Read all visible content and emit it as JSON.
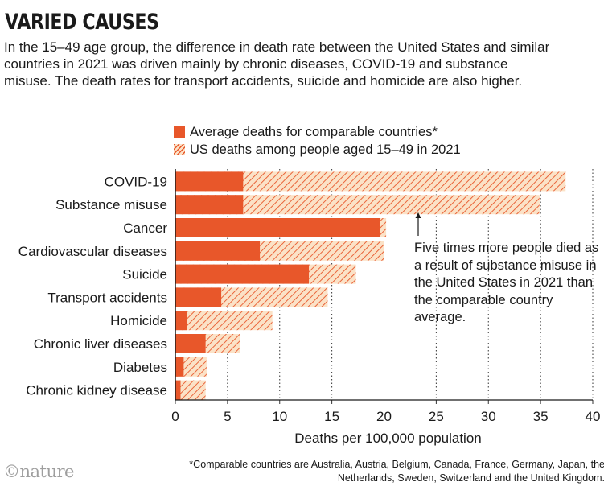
{
  "title": "VARIED CAUSES",
  "subtitle": "In the 15–49 age group, the difference in death rate between the United States and similar countries in 2021 was driven mainly by chronic diseases, COVID-19 and substance misuse. The death rates for transport accidents, suicide and homicide are also higher.",
  "annotation": "Five times more people died as a result of substance misuse in the United States in 2021 than the comparable country average.",
  "footnote": "*Comparable countries are Australia, Austria, Belgium, Canada, France, Germany, Japan, the Netherlands, Sweden, Switzerland and the United Kingdom.",
  "logo": "©nature",
  "colors": {
    "comparable": "#e8572a",
    "us_hatch_line": "#e8572a",
    "us_hatch_bg": "#fbe2c7"
  },
  "chart_data": {
    "type": "bar",
    "orientation": "horizontal",
    "categories": [
      "COVID-19",
      "Substance misuse",
      "Cancer",
      "Cardiovascular diseases",
      "Suicide",
      "Transport accidents",
      "Homicide",
      "Chronic liver diseases",
      "Diabetes",
      "Chronic kidney disease"
    ],
    "series": [
      {
        "name": "Average deaths for comparable countries*",
        "values": [
          6.5,
          6.5,
          19.6,
          8.1,
          12.8,
          4.4,
          1.1,
          2.9,
          0.8,
          0.5
        ]
      },
      {
        "name": "US deaths among people aged 15–49 in 2021",
        "values": [
          37.4,
          34.9,
          20.2,
          20.0,
          17.3,
          14.6,
          9.3,
          6.2,
          3.0,
          2.9
        ]
      }
    ],
    "overlay": true,
    "xlabel": "Deaths per 100,000 population",
    "xlim": [
      0,
      40
    ],
    "xticks": [
      0,
      5,
      10,
      15,
      20,
      25,
      30,
      35,
      40
    ],
    "grid": "vertical dotted",
    "legend_position": "top"
  }
}
